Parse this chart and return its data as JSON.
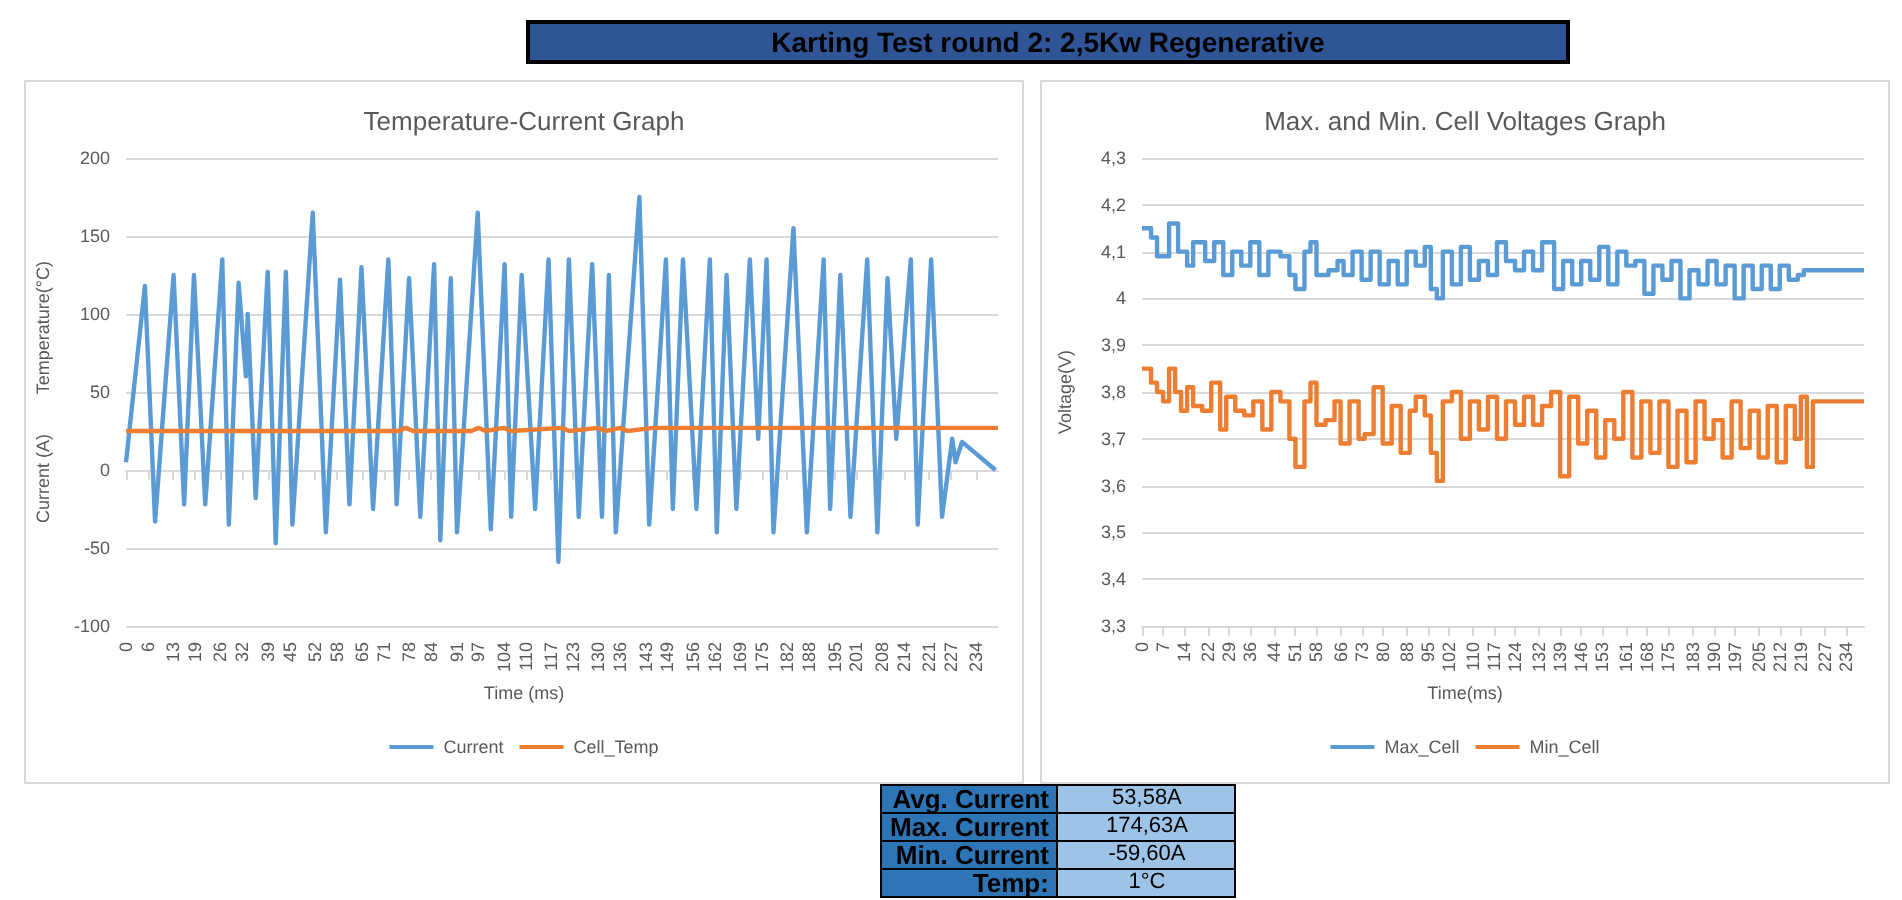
{
  "chart_data": [
    {
      "type": "other",
      "title": "Karting Test round 2: 2,5Kw Regenerative"
    },
    {
      "type": "line",
      "title": "Temperature-Current Graph",
      "xlabel": "Time (ms)",
      "ylabel": "Current (A)        Temperature(°C)",
      "xlim": [
        0,
        240
      ],
      "xticks": [
        0,
        6,
        13,
        19,
        26,
        32,
        39,
        45,
        52,
        58,
        65,
        71,
        78,
        84,
        91,
        97,
        104,
        110,
        117,
        123,
        130,
        136,
        143,
        149,
        156,
        162,
        169,
        175,
        182,
        188,
        195,
        201,
        208,
        214,
        221,
        227,
        234
      ],
      "ylim": [
        -100,
        200
      ],
      "yticks": [
        -100,
        -50,
        0,
        50,
        100,
        150,
        200
      ],
      "grid": "y",
      "legend": "bottom",
      "series": [
        {
          "name": "Current",
          "color": "#5b9bd5",
          "x": [
            0,
            5.2,
            8,
            13.1,
            16,
            18.7,
            21.8,
            26.5,
            28.3,
            31,
            33,
            33.5,
            35.7,
            39,
            41.2,
            44,
            45.8,
            51.4,
            55,
            58.9,
            61.5,
            64.8,
            68,
            72.2,
            74.5,
            77.9,
            81,
            84.8,
            86.5,
            89.4,
            91.1,
            96.8,
            100.4,
            104.2,
            106,
            108.9,
            112.6,
            116.3,
            119,
            121.9,
            124.6,
            128.3,
            131,
            132.9,
            134.8,
            141.3,
            144,
            148.6,
            150.5,
            153.3,
            157,
            160.7,
            162.6,
            165.3,
            168,
            171.7,
            174,
            176.3,
            178.2,
            183.7,
            187.4,
            192,
            193.8,
            196.6,
            199.4,
            204,
            206.8,
            209.6,
            212,
            216,
            217.9,
            221.6,
            224.6,
            227.4,
            228.3,
            230.1,
            239.3
          ],
          "values": [
            5,
            118,
            -33,
            125,
            -22,
            125,
            -22,
            135,
            -35,
            120,
            60,
            100,
            -18,
            127,
            -47,
            127,
            -35,
            165,
            -40,
            122,
            -22,
            130,
            -25,
            135,
            -22,
            123,
            -30,
            132,
            -45,
            123,
            -40,
            165,
            -38,
            132,
            -30,
            125,
            -25,
            135,
            -59,
            135,
            -30,
            132,
            -30,
            125,
            -40,
            175,
            -35,
            135,
            -25,
            135,
            -25,
            135,
            -40,
            125,
            -25,
            135,
            20,
            135,
            -40,
            155,
            -40,
            135,
            -25,
            125,
            -30,
            135,
            -40,
            123,
            20,
            135,
            -35,
            135,
            -30,
            20,
            5,
            18,
            0
          ]
        },
        {
          "name": "Cell_Temp",
          "color": "#ed7d31",
          "x": [
            0,
            75,
            77,
            79,
            95,
            97,
            99,
            104,
            106,
            120,
            122,
            130,
            132,
            136,
            138,
            145,
            240
          ],
          "values": [
            25,
            25,
            27,
            25,
            25,
            27,
            25,
            27,
            25,
            27,
            25,
            27,
            25,
            27,
            25,
            27,
            27
          ]
        }
      ]
    },
    {
      "type": "step",
      "title": "Max. and Min. Cell Voltages Graph",
      "xlabel": "Time(ms)",
      "ylabel": "Voltage(V)",
      "xlim": [
        0,
        240
      ],
      "xticks": [
        0,
        7,
        14,
        22,
        29,
        36,
        44,
        51,
        58,
        66,
        73,
        80,
        88,
        95,
        102,
        110,
        117,
        124,
        132,
        139,
        146,
        153,
        161,
        168,
        175,
        183,
        190,
        197,
        205,
        212,
        219,
        227,
        234
      ],
      "ylim": [
        3.3,
        4.3
      ],
      "yticks": [
        {
          "value": 3.3,
          "label": "3,3"
        },
        {
          "value": 3.4,
          "label": "3,4"
        },
        {
          "value": 3.5,
          "label": "3,5"
        },
        {
          "value": 3.6,
          "label": "3,6"
        },
        {
          "value": 3.7,
          "label": "3,7"
        },
        {
          "value": 3.8,
          "label": "3,8"
        },
        {
          "value": 3.9,
          "label": "3,9"
        },
        4,
        {
          "value": 4.1,
          "label": "4,1"
        },
        {
          "value": 4.2,
          "label": "4,2"
        },
        {
          "value": 4.3,
          "label": "4,3"
        }
      ],
      "grid": "y",
      "legend": "bottom",
      "series": [
        {
          "name": "Max_Cell",
          "color": "#5b9bd5",
          "x": [
            0,
            3,
            5,
            8,
            9,
            12,
            15,
            17,
            21,
            24,
            27,
            30,
            33,
            36,
            39,
            42,
            46,
            49,
            51,
            54,
            56,
            58,
            62,
            65,
            67,
            70,
            73,
            76,
            79,
            82,
            85,
            88,
            91,
            94,
            96,
            98,
            100,
            103,
            106,
            109,
            112,
            115,
            118,
            121,
            124,
            127,
            130,
            133,
            137,
            140,
            143,
            146,
            149,
            152,
            155,
            158,
            161,
            164,
            167,
            170,
            173,
            176,
            179,
            182,
            185,
            188,
            191,
            194,
            197,
            200,
            203,
            206,
            209,
            212,
            215,
            218,
            220,
            240
          ],
          "values": [
            4.15,
            4.13,
            4.09,
            4.09,
            4.16,
            4.1,
            4.07,
            4.12,
            4.08,
            4.12,
            4.05,
            4.1,
            4.07,
            4.12,
            4.05,
            4.1,
            4.09,
            4.05,
            4.02,
            4.1,
            4.12,
            4.05,
            4.06,
            4.08,
            4.05,
            4.1,
            4.04,
            4.1,
            4.03,
            4.08,
            4.03,
            4.1,
            4.07,
            4.11,
            4.02,
            4.0,
            4.1,
            4.03,
            4.11,
            4.04,
            4.08,
            4.05,
            4.12,
            4.08,
            4.06,
            4.1,
            4.06,
            4.12,
            4.02,
            4.08,
            4.03,
            4.08,
            4.04,
            4.11,
            4.03,
            4.1,
            4.07,
            4.08,
            4.01,
            4.07,
            4.04,
            4.08,
            4.0,
            4.06,
            4.03,
            4.08,
            4.03,
            4.07,
            4.0,
            4.07,
            4.02,
            4.07,
            4.02,
            4.07,
            4.04,
            4.05,
            4.06,
            4.06
          ]
        },
        {
          "name": "Min_Cell",
          "color": "#ed7d31",
          "x": [
            0,
            3,
            5,
            7,
            9,
            11,
            13,
            15,
            17,
            20,
            23,
            26,
            28,
            31,
            34,
            37,
            40,
            43,
            46,
            49,
            51,
            54,
            56,
            58,
            61,
            64,
            66,
            69,
            72,
            74,
            77,
            80,
            83,
            86,
            89,
            91,
            94,
            96,
            98,
            100,
            103,
            106,
            109,
            112,
            115,
            118,
            121,
            124,
            127,
            130,
            133,
            136,
            139,
            142,
            145,
            148,
            151,
            154,
            157,
            160,
            163,
            166,
            169,
            172,
            175,
            178,
            181,
            184,
            187,
            190,
            193,
            196,
            199,
            202,
            205,
            208,
            211,
            214,
            217,
            219,
            221,
            223,
            240
          ],
          "values": [
            3.85,
            3.82,
            3.8,
            3.78,
            3.85,
            3.8,
            3.76,
            3.81,
            3.77,
            3.76,
            3.82,
            3.72,
            3.79,
            3.76,
            3.75,
            3.78,
            3.72,
            3.8,
            3.78,
            3.7,
            3.64,
            3.78,
            3.82,
            3.73,
            3.74,
            3.78,
            3.69,
            3.78,
            3.7,
            3.71,
            3.81,
            3.69,
            3.77,
            3.67,
            3.76,
            3.79,
            3.75,
            3.67,
            3.61,
            3.78,
            3.8,
            3.7,
            3.78,
            3.72,
            3.79,
            3.7,
            3.78,
            3.73,
            3.79,
            3.73,
            3.77,
            3.8,
            3.62,
            3.79,
            3.69,
            3.76,
            3.66,
            3.74,
            3.7,
            3.8,
            3.66,
            3.78,
            3.67,
            3.78,
            3.64,
            3.76,
            3.65,
            3.78,
            3.7,
            3.74,
            3.66,
            3.78,
            3.68,
            3.76,
            3.66,
            3.77,
            3.65,
            3.77,
            3.7,
            3.79,
            3.64,
            3.78,
            3.78
          ]
        }
      ]
    },
    {
      "type": "other",
      "annotations": [
        "Avg. Current",
        "53,58A",
        "Max. Current",
        "174,63A",
        "Min. Current",
        "-59,60A",
        "Temp:",
        "1°C"
      ]
    }
  ]
}
